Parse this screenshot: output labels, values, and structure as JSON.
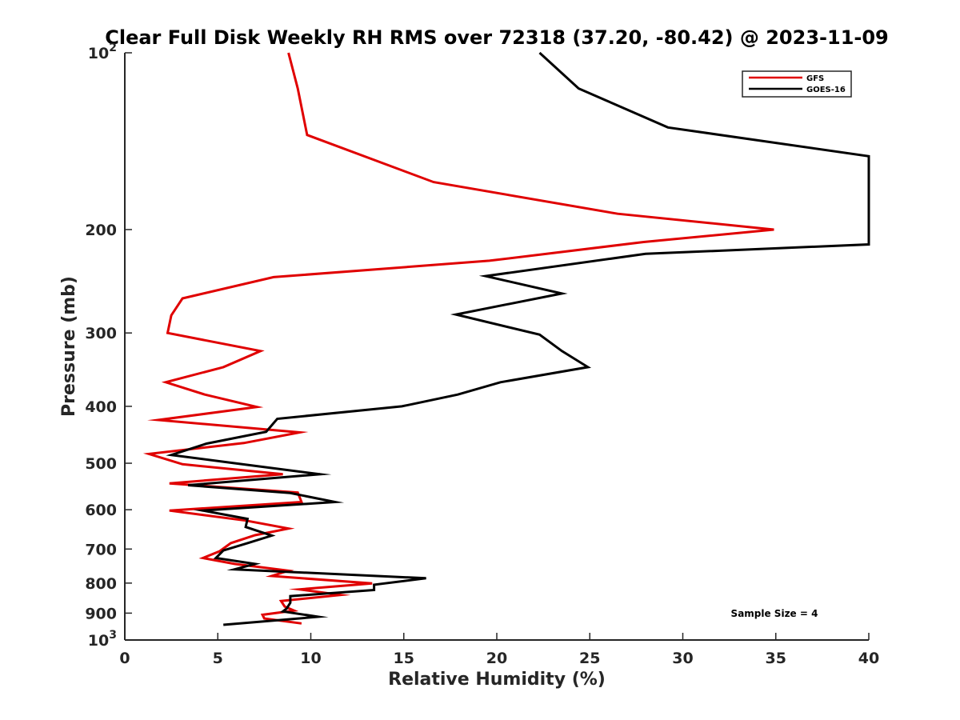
{
  "chart_data": {
    "type": "line",
    "title": "Clear Full Disk Weekly RH RMS over 72318 (37.20, -80.42) @ 2023-11-09",
    "xlabel": "Relative Humidity (%)",
    "ylabel": "Pressure (mb)",
    "xlim": [
      0,
      40
    ],
    "ylim": [
      100,
      1000
    ],
    "y_scale": "log",
    "y_reversed": true,
    "x_ticks": [
      "0",
      "5",
      "10",
      "15",
      "20",
      "25",
      "30",
      "35",
      "40"
    ],
    "y_ticks": [
      {
        "value": 100,
        "base": "10",
        "exp": "2"
      },
      {
        "value": 200,
        "label": "200"
      },
      {
        "value": 300,
        "label": "300"
      },
      {
        "value": 400,
        "label": "400"
      },
      {
        "value": 500,
        "label": "500"
      },
      {
        "value": 600,
        "label": "600"
      },
      {
        "value": 700,
        "label": "700"
      },
      {
        "value": 800,
        "label": "800"
      },
      {
        "value": 900,
        "label": "900"
      },
      {
        "value": 1000,
        "base": "10",
        "exp": "3"
      }
    ],
    "legend_position": "top-right",
    "annotation": "Sample Size = 4",
    "series": [
      {
        "name": "GFS",
        "color": "#e00000",
        "points": [
          [
            8.8,
            100
          ],
          [
            9.3,
            115
          ],
          [
            9.8,
            138
          ],
          [
            16.6,
            166
          ],
          [
            26.5,
            188
          ],
          [
            34.9,
            200
          ],
          [
            27.9,
            210
          ],
          [
            19.6,
            226
          ],
          [
            8.0,
            241
          ],
          [
            3.1,
            262
          ],
          [
            2.5,
            280
          ],
          [
            2.3,
            300
          ],
          [
            7.3,
            322
          ],
          [
            5.3,
            343
          ],
          [
            2.2,
            364
          ],
          [
            4.3,
            382
          ],
          [
            7.1,
            401
          ],
          [
            1.8,
            422
          ],
          [
            9.4,
            443
          ],
          [
            6.4,
            462
          ],
          [
            1.3,
            482
          ],
          [
            3.1,
            502
          ],
          [
            8.5,
            522
          ],
          [
            2.4,
            541
          ],
          [
            9.3,
            561
          ],
          [
            9.5,
            582
          ],
          [
            2.4,
            602
          ],
          [
            6.5,
            626
          ],
          [
            8.8,
            646
          ],
          [
            7.0,
            663
          ],
          [
            5.7,
            684
          ],
          [
            5.1,
            706
          ],
          [
            4.2,
            725
          ],
          [
            5.9,
            742
          ],
          [
            8.8,
            762
          ],
          [
            7.9,
            778
          ],
          [
            13.3,
            801
          ],
          [
            9.4,
            820
          ],
          [
            11.6,
            838
          ],
          [
            8.4,
            858
          ],
          [
            8.6,
            877
          ],
          [
            9.1,
            891
          ],
          [
            7.4,
            906
          ],
          [
            7.5,
            919
          ],
          [
            9.5,
            937
          ]
        ]
      },
      {
        "name": "GOES-16",
        "color": "#000000",
        "points": [
          [
            22.3,
            100
          ],
          [
            24.4,
            115
          ],
          [
            29.2,
            134
          ],
          [
            40,
            150
          ],
          [
            40,
            212
          ],
          [
            28.0,
            220
          ],
          [
            19.4,
            240
          ],
          [
            23.5,
            257
          ],
          [
            17.8,
            279
          ],
          [
            22.3,
            302
          ],
          [
            23.5,
            322
          ],
          [
            24.9,
            343
          ],
          [
            20.2,
            364
          ],
          [
            17.9,
            382
          ],
          [
            14.9,
            400
          ],
          [
            8.2,
            420
          ],
          [
            7.6,
            442
          ],
          [
            4.4,
            463
          ],
          [
            2.5,
            484
          ],
          [
            5.9,
            500
          ],
          [
            10.5,
            522
          ],
          [
            3.4,
            545
          ],
          [
            8.9,
            562
          ],
          [
            11.3,
            582
          ],
          [
            4.2,
            602
          ],
          [
            6.6,
            622
          ],
          [
            6.5,
            642
          ],
          [
            7.9,
            664
          ],
          [
            6.6,
            684
          ],
          [
            5.3,
            704
          ],
          [
            4.9,
            725
          ],
          [
            7.0,
            742
          ],
          [
            5.9,
            758
          ],
          [
            16.2,
            785
          ],
          [
            13.4,
            805
          ],
          [
            13.4,
            822
          ],
          [
            8.9,
            842
          ],
          [
            8.9,
            864
          ],
          [
            8.7,
            884
          ],
          [
            8.5,
            894
          ],
          [
            10.4,
            913
          ],
          [
            5.3,
            942
          ]
        ]
      }
    ]
  }
}
